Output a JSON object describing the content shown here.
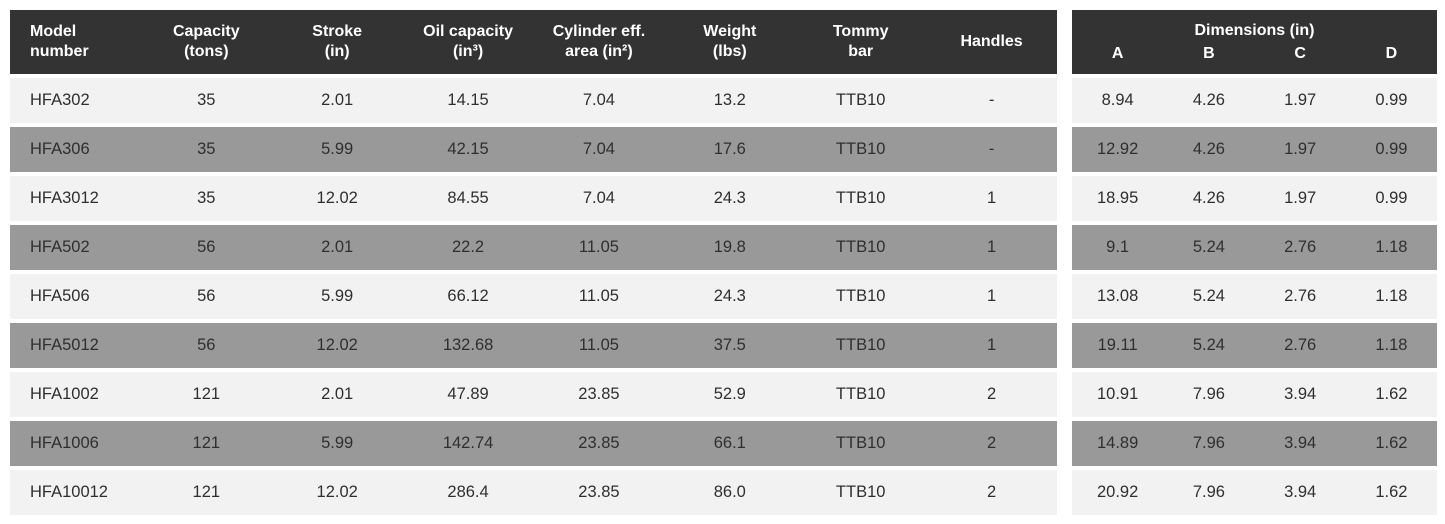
{
  "colors": {
    "header_bg": "#333333",
    "header_text": "#ffffff",
    "row_light_bg": "#f2f2f2",
    "row_gray_bg": "#999999",
    "body_text": "#2f2f2f",
    "page_bg": "#ffffff"
  },
  "spec_table": {
    "columns": [
      "Model\nnumber",
      "Capacity\n(tons)",
      "Stroke\n(in)",
      "Oil capacity\n(in³)",
      "Cylinder eff.\narea (in²)",
      "Weight\n(lbs)",
      "Tommy\nbar",
      "Handles"
    ],
    "field_names": [
      "model-number",
      "capacity",
      "stroke",
      "oil-capacity",
      "cylinder-eff-area",
      "weight",
      "tommy-bar",
      "handles"
    ],
    "rows": [
      [
        "HFA302",
        "35",
        "2.01",
        "14.15",
        "7.04",
        "13.2",
        "TTB10",
        "-"
      ],
      [
        "HFA306",
        "35",
        "5.99",
        "42.15",
        "7.04",
        "17.6",
        "TTB10",
        "-"
      ],
      [
        "HFA3012",
        "35",
        "12.02",
        "84.55",
        "7.04",
        "24.3",
        "TTB10",
        "1"
      ],
      [
        "HFA502",
        "56",
        "2.01",
        "22.2",
        "11.05",
        "19.8",
        "TTB10",
        "1"
      ],
      [
        "HFA506",
        "56",
        "5.99",
        "66.12",
        "11.05",
        "24.3",
        "TTB10",
        "1"
      ],
      [
        "HFA5012",
        "56",
        "12.02",
        "132.68",
        "11.05",
        "37.5",
        "TTB10",
        "1"
      ],
      [
        "HFA1002",
        "121",
        "2.01",
        "47.89",
        "23.85",
        "52.9",
        "TTB10",
        "2"
      ],
      [
        "HFA1006",
        "121",
        "5.99",
        "142.74",
        "23.85",
        "66.1",
        "TTB10",
        "2"
      ],
      [
        "HFA10012",
        "121",
        "12.02",
        "286.4",
        "23.85",
        "86.0",
        "TTB10",
        "2"
      ]
    ]
  },
  "dimensions_table": {
    "title": "Dimensions (in)",
    "columns": [
      "A",
      "B",
      "C",
      "D"
    ],
    "field_names": [
      "dim-a",
      "dim-b",
      "dim-c",
      "dim-d"
    ],
    "rows": [
      [
        "8.94",
        "4.26",
        "1.97",
        "0.99"
      ],
      [
        "12.92",
        "4.26",
        "1.97",
        "0.99"
      ],
      [
        "18.95",
        "4.26",
        "1.97",
        "0.99"
      ],
      [
        "9.1",
        "5.24",
        "2.76",
        "1.18"
      ],
      [
        "13.08",
        "5.24",
        "2.76",
        "1.18"
      ],
      [
        "19.11",
        "5.24",
        "2.76",
        "1.18"
      ],
      [
        "10.91",
        "7.96",
        "3.94",
        "1.62"
      ],
      [
        "14.89",
        "7.96",
        "3.94",
        "1.62"
      ],
      [
        "20.92",
        "7.96",
        "3.94",
        "1.62"
      ]
    ]
  }
}
